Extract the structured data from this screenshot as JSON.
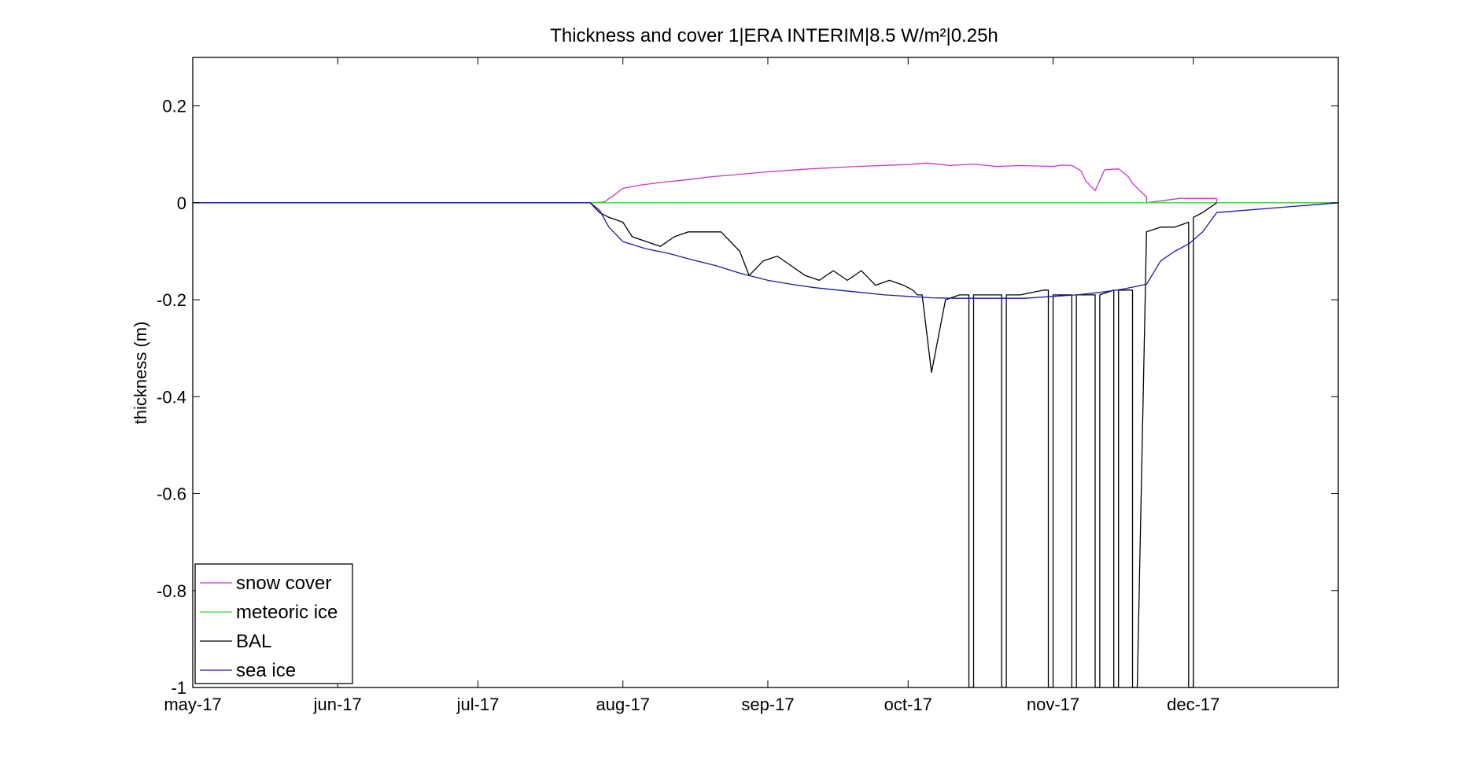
{
  "chart_data": {
    "type": "line",
    "title": "Thickness and cover 1|ERA INTERIM|8.5 W/m²|0.25h",
    "xlabel": "",
    "ylabel": "thickness (m)",
    "xlim": [
      "2017-05-01",
      "2018-01-01"
    ],
    "ylim": [
      -1,
      0.3
    ],
    "x_ticks": [
      "2017-05-01",
      "2017-06-01",
      "2017-07-01",
      "2017-08-01",
      "2017-09-01",
      "2017-10-01",
      "2017-11-01",
      "2017-12-01"
    ],
    "x_tick_labels": [
      "may-17",
      "jun-17",
      "jul-17",
      "aug-17",
      "sep-17",
      "oct-17",
      "nov-17",
      "dec-17"
    ],
    "y_ticks": [
      0.2,
      0,
      -0.2,
      -0.4,
      -0.6,
      -0.8,
      -1
    ],
    "y_tick_labels": [
      "0.2",
      "0",
      "-0.2",
      "-0.4",
      "-0.6",
      "-0.8",
      "-1"
    ],
    "grid": false,
    "legend_position": "bottom-left",
    "series": [
      {
        "name": "snow cover",
        "color": "#cc33cc",
        "x": [
          "2017-05-01",
          "2017-07-26",
          "2017-07-28",
          "2017-07-30",
          "2017-08-01",
          "2017-08-05",
          "2017-08-10",
          "2017-08-15",
          "2017-08-20",
          "2017-08-25",
          "2017-09-01",
          "2017-09-10",
          "2017-09-20",
          "2017-10-01",
          "2017-10-05",
          "2017-10-10",
          "2017-10-15",
          "2017-10-20",
          "2017-10-25",
          "2017-11-01",
          "2017-11-03",
          "2017-11-05",
          "2017-11-07",
          "2017-11-08",
          "2017-11-10",
          "2017-11-12",
          "2017-11-15",
          "2017-11-17",
          "2017-11-18",
          "2017-11-21",
          "2017-11-21",
          "2017-11-28",
          "2017-12-06",
          "2017-12-06",
          "2018-01-01"
        ],
        "y": [
          0,
          0,
          0.002,
          0.015,
          0.03,
          0.037,
          0.043,
          0.048,
          0.054,
          0.058,
          0.064,
          0.07,
          0.075,
          0.079,
          0.082,
          0.077,
          0.08,
          0.075,
          0.077,
          0.075,
          0.078,
          0.077,
          0.066,
          0.045,
          0.025,
          0.068,
          0.07,
          0.055,
          0.04,
          0.012,
          0,
          0.009,
          0.009,
          0,
          0
        ]
      },
      {
        "name": "meteoric ice",
        "color": "#33dd33",
        "x": [
          "2017-05-01",
          "2018-01-01"
        ],
        "y": [
          0,
          0
        ]
      },
      {
        "name": "BAL",
        "color": "#000000",
        "x": [
          "2017-05-01",
          "2017-07-25",
          "2017-07-27",
          "2017-07-29",
          "2017-08-01",
          "2017-08-03",
          "2017-08-06",
          "2017-08-09",
          "2017-08-12",
          "2017-08-15",
          "2017-08-19",
          "2017-08-22",
          "2017-08-26",
          "2017-08-28",
          "2017-08-31",
          "2017-09-03",
          "2017-09-06",
          "2017-09-09",
          "2017-09-12",
          "2017-09-15",
          "2017-09-18",
          "2017-09-21",
          "2017-09-24",
          "2017-09-27",
          "2017-09-30",
          "2017-10-02",
          "2017-10-03",
          "2017-10-04",
          "2017-10-06",
          "2017-10-09",
          "2017-10-12",
          "2017-10-14",
          "2017-10-14",
          "2017-10-15",
          "2017-10-15",
          "2017-10-20",
          "2017-10-21",
          "2017-10-21",
          "2017-10-22",
          "2017-10-22",
          "2017-10-25",
          "2017-10-30",
          "2017-10-31",
          "2017-10-31",
          "2017-11-01",
          "2017-11-01",
          "2017-11-05",
          "2017-11-05",
          "2017-11-06",
          "2017-11-06",
          "2017-11-10",
          "2017-11-10",
          "2017-11-11",
          "2017-11-11",
          "2017-11-14",
          "2017-11-14",
          "2017-11-15",
          "2017-11-15",
          "2017-11-18",
          "2017-11-18",
          "2017-11-19",
          "2017-11-21",
          "2017-11-21",
          "2017-11-24",
          "2017-11-27",
          "2017-11-30",
          "2017-11-30",
          "2017-12-01",
          "2017-12-01",
          "2017-12-03",
          "2017-12-06"
        ],
        "y": [
          0,
          0,
          -0.02,
          -0.03,
          -0.04,
          -0.07,
          -0.08,
          -0.09,
          -0.07,
          -0.06,
          -0.06,
          -0.06,
          -0.1,
          -0.15,
          -0.12,
          -0.11,
          -0.13,
          -0.15,
          -0.16,
          -0.14,
          -0.16,
          -0.14,
          -0.17,
          -0.16,
          -0.17,
          -0.18,
          -0.19,
          -0.19,
          -0.35,
          -0.2,
          -0.19,
          -0.19,
          -1,
          -1,
          -0.19,
          -0.19,
          -0.19,
          -1,
          -1,
          -0.19,
          -0.19,
          -0.18,
          -0.18,
          -1,
          -1,
          -0.19,
          -0.19,
          -1,
          -1,
          -0.19,
          -0.19,
          -1,
          -1,
          -0.19,
          -0.18,
          -1,
          -1,
          -0.18,
          -0.18,
          -1,
          -1,
          -0.06,
          -0.06,
          -0.05,
          -0.05,
          -0.04,
          -1,
          -1,
          -0.03,
          -0.02,
          0
        ]
      },
      {
        "name": "sea ice",
        "color": "#1a1aaa",
        "x": [
          "2017-05-01",
          "2017-07-25",
          "2017-07-27",
          "2017-07-29",
          "2017-08-01",
          "2017-08-06",
          "2017-08-11",
          "2017-08-16",
          "2017-08-21",
          "2017-08-26",
          "2017-09-01",
          "2017-09-06",
          "2017-09-11",
          "2017-09-16",
          "2017-09-21",
          "2017-09-26",
          "2017-10-01",
          "2017-10-06",
          "2017-10-11",
          "2017-10-16",
          "2017-10-21",
          "2017-10-26",
          "2017-11-01",
          "2017-11-06",
          "2017-11-11",
          "2017-11-16",
          "2017-11-21",
          "2017-11-24",
          "2017-11-27",
          "2017-11-30",
          "2017-12-03",
          "2017-12-06",
          "2018-01-01"
        ],
        "y": [
          0,
          0,
          -0.015,
          -0.05,
          -0.08,
          -0.095,
          -0.105,
          -0.118,
          -0.13,
          -0.145,
          -0.16,
          -0.168,
          -0.175,
          -0.18,
          -0.185,
          -0.19,
          -0.193,
          -0.196,
          -0.197,
          -0.197,
          -0.197,
          -0.197,
          -0.193,
          -0.19,
          -0.185,
          -0.178,
          -0.168,
          -0.12,
          -0.1,
          -0.085,
          -0.06,
          -0.02,
          0
        ]
      }
    ]
  }
}
